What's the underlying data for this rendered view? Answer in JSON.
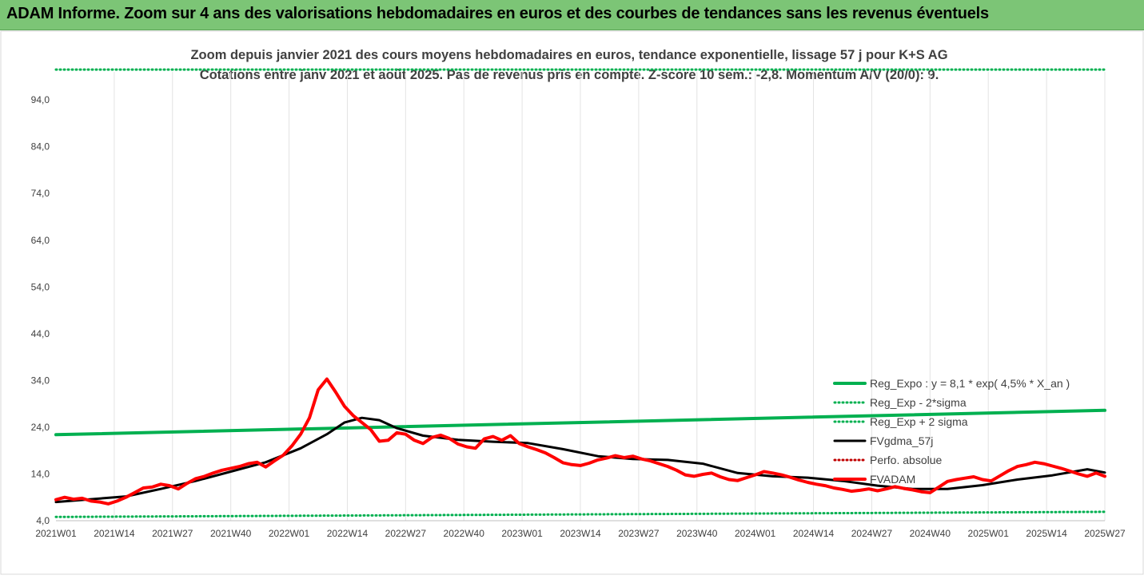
{
  "header": {
    "title": "ADAM Informe. Zoom sur 4 ans des valorisations hebdomadaires en euros et des courbes de tendances sans les revenus éventuels"
  },
  "chart_data": {
    "type": "line",
    "title": "Zoom depuis janvier 2021 des cours moyens hebdomadaires en euros, tendance exponentielle, lissage 57 j pour K+S AG",
    "subtitle": "Cotations entre janv 2021 et août 2025.  Pas de revenus pris en compte. Z-score 10 sem.: -2,8. Momentum A/V (20/0): 9.",
    "x_tick_labels": [
      "2021W01",
      "2021W14",
      "2021W27",
      "2021W40",
      "2022W01",
      "2022W14",
      "2022W27",
      "2022W40",
      "2023W01",
      "2023W14",
      "2023W27",
      "2023W40",
      "2024W01",
      "2024W14",
      "2024W27",
      "2024W40",
      "2025W01",
      "2025W14",
      "2025W27"
    ],
    "y_tick_labels": [
      "4,0",
      "14,0",
      "24,0",
      "34,0",
      "44,0",
      "54,0",
      "64,0",
      "74,0",
      "84,0",
      "94,0"
    ],
    "ylim": [
      4,
      100
    ],
    "grid": "vertical",
    "legend_position": "right",
    "colors": {
      "reg_expo": "#00b050",
      "fvgdma": "#000000",
      "perfo": "#c00000",
      "fvadam": "#ff0000"
    },
    "series": [
      {
        "name": "Reg_Expo : y = 8,1 * exp( 4,5% *  X_an )",
        "style": "solid",
        "color": "#00b050",
        "x": [
          0,
          240
        ],
        "y": [
          22.4,
          27.6
        ]
      },
      {
        "name": "Reg_Exp - 2*sigma",
        "style": "dotted",
        "color": "#00b050",
        "x": [
          0,
          240
        ],
        "y": [
          4.8,
          5.9
        ]
      },
      {
        "name": "Reg_Exp + 2 sigma",
        "style": "dotted",
        "color": "#00b050",
        "x": [
          0,
          240
        ],
        "y": [
          100.5,
          100.5
        ]
      },
      {
        "name": "FVgdma_57j",
        "style": "solid",
        "color": "#000000",
        "x": [
          0,
          8,
          16,
          24,
          32,
          40,
          48,
          56,
          62,
          66,
          70,
          74,
          78,
          84,
          92,
          100,
          108,
          116,
          124,
          132,
          140,
          148,
          156,
          164,
          172,
          180,
          188,
          196,
          204,
          212,
          220,
          228,
          236,
          240
        ],
        "y": [
          8,
          8.6,
          9.2,
          10.8,
          12.5,
          14.5,
          16.5,
          19.5,
          22.5,
          25,
          26,
          25.5,
          23.8,
          22.2,
          21.3,
          20.9,
          20.6,
          19.3,
          17.8,
          17.2,
          17,
          16.2,
          14.2,
          13.5,
          13.2,
          12.5,
          11.5,
          10.8,
          10.8,
          11.6,
          12.8,
          13.7,
          15,
          14.3
        ]
      },
      {
        "name": "Perfo. absolue",
        "style": "dotted",
        "color": "#c00000",
        "x": [],
        "y": []
      },
      {
        "name": "FVADAM",
        "style": "solid",
        "color": "#ff0000",
        "x": [
          0,
          2,
          4,
          6,
          8,
          10,
          12,
          14,
          16,
          18,
          20,
          22,
          24,
          26,
          28,
          30,
          32,
          34,
          36,
          38,
          40,
          42,
          44,
          46,
          48,
          50,
          52,
          54,
          56,
          58,
          60,
          62,
          64,
          66,
          68,
          70,
          72,
          74,
          76,
          78,
          80,
          82,
          84,
          86,
          88,
          90,
          92,
          94,
          96,
          98,
          100,
          102,
          104,
          106,
          108,
          110,
          112,
          114,
          116,
          118,
          120,
          122,
          124,
          126,
          128,
          130,
          132,
          134,
          136,
          138,
          140,
          142,
          144,
          146,
          148,
          150,
          152,
          154,
          156,
          158,
          160,
          162,
          164,
          166,
          168,
          170,
          172,
          174,
          176,
          178,
          180,
          182,
          184,
          186,
          188,
          190,
          192,
          194,
          196,
          198,
          200,
          202,
          204,
          206,
          208,
          210,
          212,
          214,
          216,
          218,
          220,
          222,
          224,
          226,
          228,
          230,
          232,
          234,
          236,
          238,
          240
        ],
        "y": [
          8.5,
          9,
          8.6,
          8.8,
          8.2,
          8,
          7.6,
          8.2,
          9,
          10,
          11,
          11.2,
          11.8,
          11.5,
          10.8,
          12,
          13,
          13.5,
          14.2,
          14.8,
          15.2,
          15.6,
          16.2,
          16.5,
          15.5,
          16.8,
          18,
          20,
          22.5,
          26,
          32,
          34.3,
          31.5,
          28.5,
          26.5,
          25,
          23.5,
          21,
          21.2,
          22.8,
          22.5,
          21.2,
          20.5,
          21.8,
          22.3,
          21.6,
          20.4,
          19.8,
          19.5,
          21.5,
          22,
          21.2,
          22.2,
          20.5,
          19.8,
          19.2,
          18.5,
          17.5,
          16.4,
          16,
          15.8,
          16.3,
          17,
          17.4,
          17.9,
          17.5,
          17.8,
          17.2,
          16.8,
          16.2,
          15.6,
          14.8,
          13.8,
          13.5,
          13.9,
          14.2,
          13.4,
          12.8,
          12.6,
          13.2,
          13.8,
          14.5,
          14.2,
          13.8,
          13.3,
          12.7,
          12.2,
          11.8,
          11.5,
          11,
          10.7,
          10.3,
          10.5,
          10.8,
          10.4,
          10.8,
          11.3,
          10.9,
          10.6,
          10.2,
          10,
          11.2,
          12.4,
          12.8,
          13.1,
          13.4,
          12.8,
          12.5,
          13.6,
          14.7,
          15.6,
          16,
          16.5,
          16.2,
          15.7,
          15.2,
          14.6,
          14,
          13.5,
          14.2,
          13.5
        ]
      }
    ]
  }
}
